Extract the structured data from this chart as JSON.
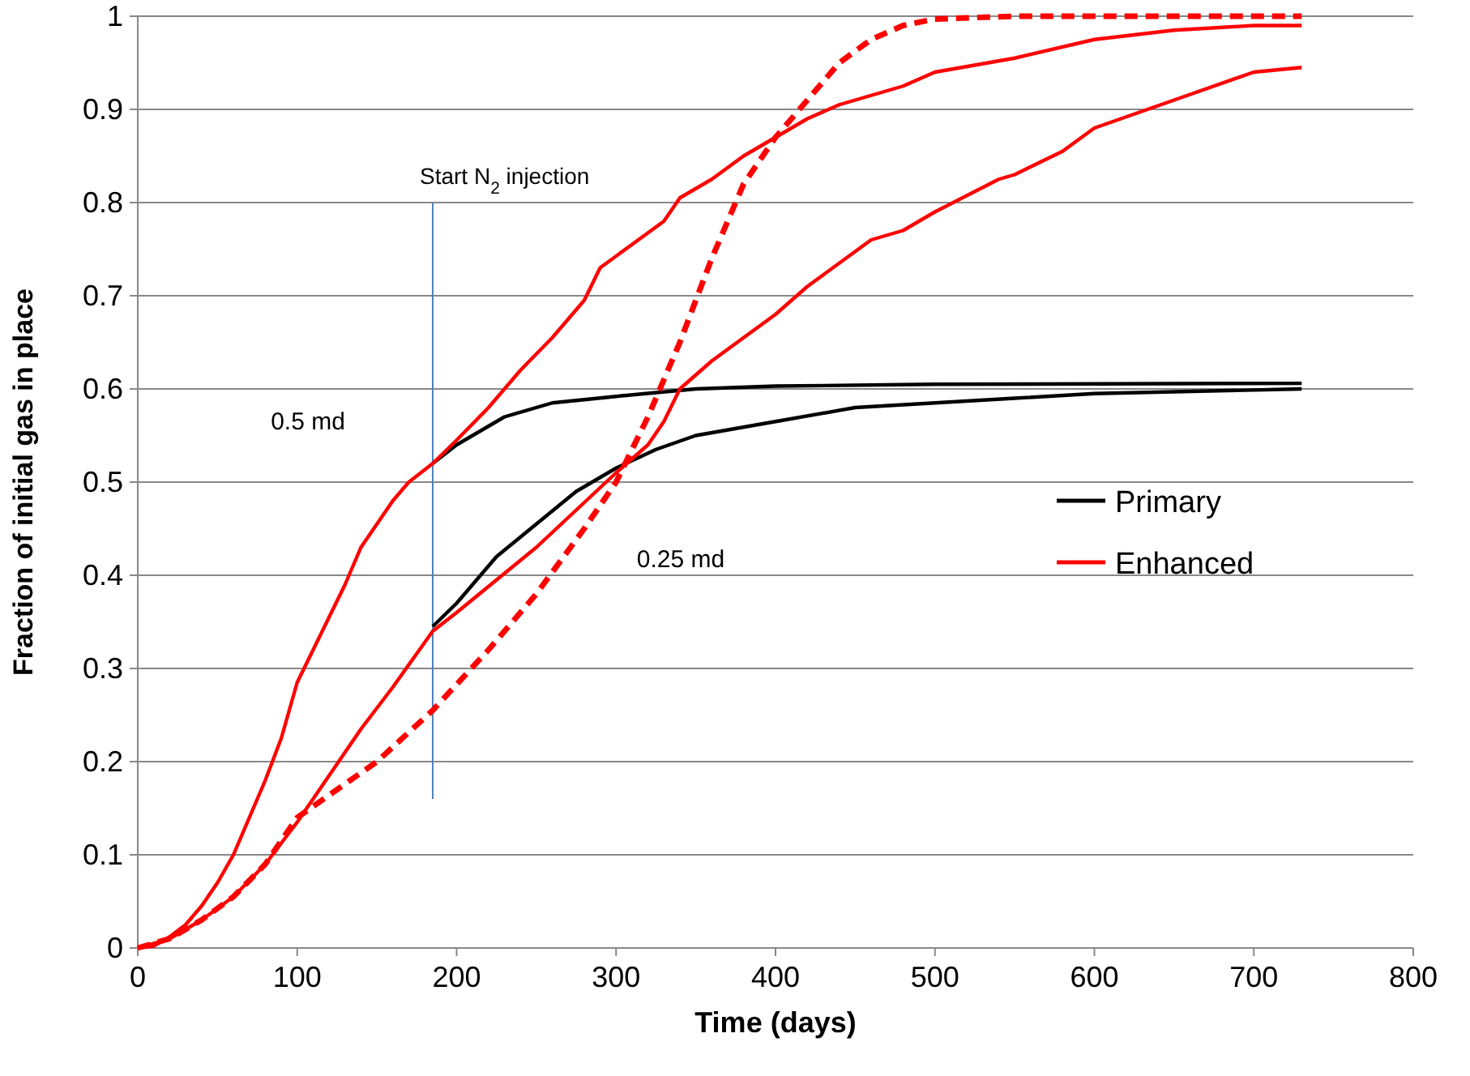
{
  "chart_data": {
    "type": "line",
    "xlabel": "Time (days)",
    "ylabel": "Fraction of initial gas in place",
    "xlim": [
      0,
      800
    ],
    "xticks": [
      0,
      100,
      200,
      300,
      400,
      500,
      600,
      700,
      800
    ],
    "ylim": [
      0,
      1
    ],
    "yticks": [
      0,
      0.1,
      0.2,
      0.3,
      0.4,
      0.5,
      0.6,
      0.7,
      0.8,
      0.9,
      1
    ],
    "grid": "y",
    "legend": "right",
    "ref_lines": [
      {
        "axis": "x",
        "value": 185,
        "label": "Start N$_{2}$ injection",
        "color": "#4f81bd"
      }
    ],
    "annotations": [
      "0.5 md",
      "0.25 md"
    ],
    "series": [
      {
        "name": "Primary",
        "color": "#000000",
        "line_style": "solid",
        "x": [
          185,
          200,
          230,
          260,
          300,
          350,
          400,
          500,
          730
        ],
        "values": [
          0.52,
          0.54,
          0.57,
          0.585,
          0.592,
          0.6,
          0.603,
          0.605,
          0.606
        ]
      },
      {
        "color": "#000000",
        "line_style": "solid",
        "x": [
          185,
          200,
          225,
          250,
          275,
          300,
          325,
          350,
          400,
          450,
          500,
          550,
          600,
          730
        ],
        "values": [
          0.345,
          0.37,
          0.42,
          0.455,
          0.49,
          0.515,
          0.535,
          0.55,
          0.565,
          0.58,
          0.585,
          0.59,
          0.595,
          0.6
        ]
      },
      {
        "name": "Enhanced",
        "color": "#ff0000",
        "line_style": "solid",
        "x": [
          0,
          10,
          20,
          30,
          40,
          50,
          60,
          70,
          80,
          90,
          100,
          110,
          120,
          130,
          140,
          150,
          160,
          170,
          185,
          200,
          220,
          240,
          260,
          280,
          290,
          310,
          330,
          340,
          360,
          380,
          400,
          420,
          440,
          460,
          480,
          500,
          550,
          600,
          650,
          700,
          730
        ],
        "values": [
          0,
          0.002,
          0.012,
          0.025,
          0.045,
          0.07,
          0.1,
          0.14,
          0.18,
          0.225,
          0.285,
          0.32,
          0.355,
          0.39,
          0.43,
          0.455,
          0.48,
          0.5,
          0.52,
          0.545,
          0.58,
          0.62,
          0.655,
          0.695,
          0.73,
          0.755,
          0.78,
          0.805,
          0.825,
          0.85,
          0.87,
          0.89,
          0.905,
          0.915,
          0.925,
          0.94,
          0.955,
          0.975,
          0.985,
          0.99,
          0.99
        ]
      },
      {
        "color": "#ff0000",
        "line_style": "solid",
        "x": [
          0,
          20,
          40,
          60,
          80,
          100,
          120,
          140,
          160,
          185,
          200,
          225,
          250,
          275,
          300,
          320,
          330,
          340,
          360,
          400,
          420,
          460,
          480,
          500,
          540,
          550,
          580,
          600,
          650,
          700,
          730
        ],
        "values": [
          0,
          0.01,
          0.03,
          0.055,
          0.09,
          0.135,
          0.185,
          0.235,
          0.28,
          0.34,
          0.36,
          0.395,
          0.43,
          0.47,
          0.51,
          0.54,
          0.565,
          0.6,
          0.63,
          0.68,
          0.71,
          0.76,
          0.77,
          0.79,
          0.825,
          0.83,
          0.855,
          0.88,
          0.91,
          0.94,
          0.945
        ]
      },
      {
        "color": "#ff0000",
        "line_style": "dashed",
        "x": [
          0,
          20,
          40,
          60,
          80,
          100,
          150,
          185,
          220,
          250,
          280,
          300,
          320,
          340,
          360,
          380,
          400,
          420,
          440,
          460,
          480,
          500,
          550,
          730
        ],
        "values": [
          0,
          0.01,
          0.03,
          0.055,
          0.09,
          0.14,
          0.2,
          0.255,
          0.32,
          0.38,
          0.45,
          0.5,
          0.57,
          0.65,
          0.74,
          0.82,
          0.87,
          0.91,
          0.95,
          0.975,
          0.99,
          0.997,
          1,
          1
        ]
      }
    ]
  }
}
